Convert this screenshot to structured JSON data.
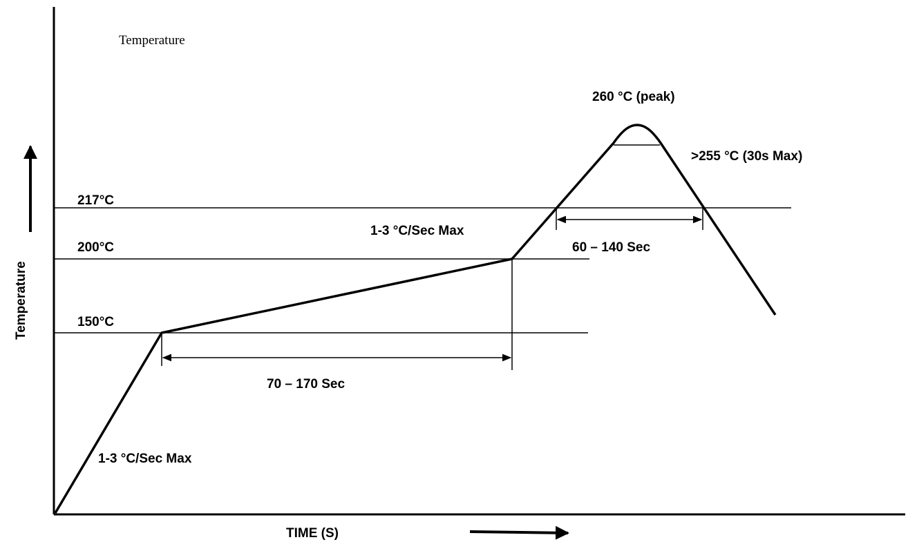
{
  "chart_data": {
    "type": "line",
    "title": "",
    "top_label": "Temperature",
    "ylabel": "Temperature",
    "xlabel": "TIME (S)",
    "reference_lines": [
      {
        "value": 217,
        "label": "217°C"
      },
      {
        "value": 200,
        "label": "200°C"
      },
      {
        "value": 150,
        "label": "150°C"
      }
    ],
    "profile_points": [
      {
        "phase": "start",
        "temp_c": 25
      },
      {
        "phase": "preheat-start",
        "temp_c": 150
      },
      {
        "phase": "preheat-end",
        "temp_c": 200
      },
      {
        "phase": "liquidus-cross-up",
        "temp_c": 217
      },
      {
        "phase": "peak",
        "temp_c": 260
      },
      {
        "phase": "liquidus-cross-down",
        "temp_c": 217
      }
    ],
    "annotations": {
      "ramp_rate_initial": "1-3 °C/Sec Max",
      "ramp_rate_final": "1-3 °C/Sec Max",
      "preheat_duration": "70 – 170 Sec",
      "reflow_duration": "60 – 140 Sec",
      "peak": "260 °C (peak)",
      "above_255": ">255 °C (30s Max)"
    },
    "grid": false,
    "legend": "none"
  }
}
